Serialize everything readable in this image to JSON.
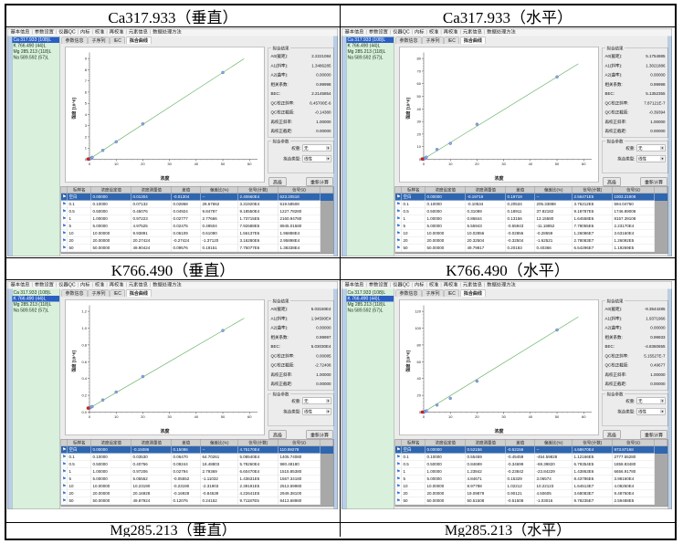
{
  "captions": {
    "r1c1": "Ca317.933（垂直）",
    "r1c2": "Ca317.933（水平）",
    "r2c1": "K766.490（垂直）",
    "r2c2": "K766.490（水平）",
    "r3c1": "Mg285.213（垂直）",
    "r3c2": "Mg285.213（水平）"
  },
  "app_common": {
    "menu": [
      "基本信息",
      "参数设置",
      "仪器QC",
      "内标",
      "校准",
      "再校准",
      "元素信息",
      "数据处理方法"
    ],
    "sidebar": [
      "Ca 317.933 (108)L",
      "K 766.490 (44)L",
      "Mg 285.213 (118)L",
      "Na 589.592 (57)L"
    ],
    "tabs": [
      "参数信息",
      "子序列",
      "IEC",
      "拟合曲线"
    ],
    "active_tab": "拟合曲线",
    "fit_group_title": "拟合结果",
    "fit_labels": [
      "A0(截距):",
      "A1(斜率):",
      "A2(曲率):",
      "相关系数:",
      "BEC:",
      "QC校正斜率:",
      "QC校正截距:",
      "再校正斜率:",
      "再校正截距:"
    ],
    "param_group_title": "拟合参数",
    "weight_label": "权重:",
    "weight_value": "无",
    "fit_type_label": "拟合类型:",
    "fit_type_value": "线性",
    "buttons": [
      "高级",
      "重新计算"
    ],
    "table_headers": [
      "",
      "标样名",
      "浓度设定值",
      "浓度测量值",
      "差值",
      "偏差比(%)",
      "信号(计数)",
      "信号SD"
    ],
    "x_axis_label": "浓度",
    "y_axis_label": "强度 [10^6]",
    "x_ticks": [
      0,
      10,
      20,
      30,
      40,
      50,
      60
    ],
    "flag_icon": "⚑",
    "colors": {
      "accent_blue": "#2b5fc4",
      "sidebar_green": "#d9f0dc",
      "fit_line_green": "#55aa55",
      "point_blue": "#8fa8dc",
      "point_red": "#e02020"
    }
  },
  "screens": [
    {
      "element": "Ca 317.933",
      "orientation": "垂直",
      "sidebar_selected": 0,
      "fit_values": [
        "2.2221084",
        "1.3486285",
        "0.00000",
        "0.99998",
        "2.2145854",
        "6.45700E-6",
        "-0.14380",
        "1.00000",
        "0.00000"
      ],
      "y_ticks": [
        "0",
        "1",
        "2",
        "3",
        "4",
        "5",
        "6",
        "7",
        "8",
        "9"
      ],
      "points": [
        [
          0,
          0.024
        ],
        [
          0.1,
          0.033
        ],
        [
          0.5,
          0.092
        ],
        [
          1,
          0.174
        ],
        [
          5,
          0.793
        ],
        [
          10,
          1.561
        ],
        [
          20,
          3.163
        ],
        [
          50,
          7.751
        ]
      ],
      "rows": [
        [
          "空白",
          "0.00000",
          "0.01304",
          "-0.01304",
          "--",
          "2.40660E4",
          "623.20518"
        ],
        [
          "0.1",
          "0.10000",
          "0.07132",
          "0.02868",
          "28.67662",
          "3.31920E4",
          "519.58508"
        ],
        [
          "0.5",
          "0.50000",
          "0.45076",
          "0.04924",
          "9.84787",
          "9.18550E4",
          "1227.78280"
        ],
        [
          "1",
          "1.00000",
          "0.97223",
          "0.02777",
          "2.77666",
          "1.73715E5",
          "2160.94780"
        ],
        [
          "5",
          "5.00000",
          "4.97525",
          "0.02475",
          "0.49504",
          "7.92688E5",
          "8945.01580"
        ],
        [
          "10",
          "10.00000",
          "9.93891",
          "0.06109",
          "0.61090",
          "1.56137E6",
          "1.96888E4"
        ],
        [
          "20",
          "20.00000",
          "20.27424",
          "-0.27424",
          "-1.37120",
          "3.16280E6",
          "2.95898E4"
        ],
        [
          "50",
          "50.00000",
          "49.90424",
          "0.09576",
          "0.19151",
          "7.75077E6",
          "1.38338E4"
        ]
      ]
    },
    {
      "element": "Ca 317.933",
      "orientation": "水平",
      "sidebar_selected": 0,
      "fit_values": [
        "5.1754885",
        "1.3021886",
        "0.00000",
        "0.99998",
        "5.1352355",
        "7.87121E-7",
        "-0.39394",
        "1.00000",
        "0.00000"
      ],
      "y_ticks": [
        "0",
        "10",
        "20",
        "30",
        "40",
        "50",
        "60",
        "70",
        "80"
      ],
      "points": [
        [
          0,
          0.256
        ],
        [
          0.1,
          0.376
        ],
        [
          0.5,
          0.919
        ],
        [
          1,
          1.646
        ],
        [
          5,
          7.781
        ],
        [
          10,
          12.609
        ],
        [
          20,
          27.808
        ],
        [
          50,
          65.43
        ]
      ],
      "rows": [
        [
          "空白",
          "0.00000",
          "-0.19719",
          "0.19719",
          "--",
          "2.56471E5",
          "1003.21908"
        ],
        [
          "0.1",
          "0.10000",
          "-0.10534",
          "0.20534",
          "205.33888",
          "3.76212E5",
          "594.04760"
        ],
        [
          "0.5",
          "0.50000",
          "0.31089",
          "0.18911",
          "37.82182",
          "9.18787E5",
          "1746.89008"
        ],
        [
          "1",
          "1.00000",
          "0.86844",
          "0.13156",
          "13.15580",
          "1.64558E6",
          "8157.39108"
        ],
        [
          "5",
          "5.00000",
          "5.55943",
          "-0.55943",
          "-11.18852",
          "7.78055E6",
          "2.23170E4"
        ],
        [
          "10",
          "10.00000",
          "10.02856",
          "-0.02856",
          "-0.28559",
          "1.26086E7",
          "3.63160E4"
        ],
        [
          "20",
          "20.00000",
          "20.32504",
          "-0.32504",
          "-1.62521",
          "2.78083E7",
          "1.26092E5"
        ],
        [
          "50",
          "50.00000",
          "49.79817",
          "0.20183",
          "0.40366",
          "6.54296E7",
          "1.19269E5"
        ]
      ]
    },
    {
      "element": "K 766.490",
      "orientation": "垂直",
      "sidebar_selected": 1,
      "fit_values": [
        "5.03150E4",
        "1.94590E4",
        "0.00000",
        "0.99997",
        "5.03030E4",
        "0.00085",
        "-2.72408",
        "1.00000",
        "0.00000"
      ],
      "y_ticks": [
        "0.0",
        "0.2",
        "0.4",
        "0.6",
        "0.8",
        "1.0",
        "1.2"
      ],
      "points": [
        [
          0,
          0.048
        ],
        [
          0.1,
          0.051
        ],
        [
          0.5,
          0.058
        ],
        [
          1,
          0.066
        ],
        [
          5,
          0.144
        ],
        [
          10,
          0.239
        ],
        [
          20,
          0.423
        ],
        [
          50,
          0.971
        ]
      ],
      "rows": [
        [
          "空白",
          "0.00000",
          "-0.15086",
          "0.15086",
          "--",
          "4.75170E4",
          "110.99278"
        ],
        [
          "0.1",
          "0.10000",
          "0.03530",
          "0.06470",
          "64.70261",
          "5.08540E4",
          "1405.74080"
        ],
        [
          "0.5",
          "0.50000",
          "0.40756",
          "0.09244",
          "18.48803",
          "5.78260E4",
          "980.48180"
        ],
        [
          "1",
          "1.00000",
          "0.97206",
          "0.02794",
          "2.79369",
          "6.60470E4",
          "1515.85380"
        ],
        [
          "5",
          "5.00000",
          "5.05552",
          "-0.05552",
          "-1.11032",
          "1.43631E5",
          "1567.34180"
        ],
        [
          "10",
          "10.00000",
          "10.23190",
          "-0.23190",
          "-2.31903",
          "2.39191E5",
          "2513.59980"
        ],
        [
          "20",
          "20.00000",
          "20.16928",
          "-0.16928",
          "-0.84639",
          "4.22641E5",
          "2949.38100"
        ],
        [
          "50",
          "50.00000",
          "49.87924",
          "0.12076",
          "0.24152",
          "9.71187E5",
          "8413.68980"
        ]
      ]
    },
    {
      "element": "K 766.490",
      "orientation": "水平",
      "sidebar_selected": 1,
      "fit_values": [
        "-9.3544285",
        "1.9371966",
        "0.00000",
        "0.99933",
        "-4.8360655",
        "5.15527E-7",
        "0.49677",
        "1.00000",
        "0.00000"
      ],
      "y_ticks": [
        "0",
        "20",
        "40",
        "60",
        "80",
        "100",
        "120"
      ],
      "points": [
        [
          0,
          0.047
        ],
        [
          0.1,
          0.112
        ],
        [
          0.5,
          0.679
        ],
        [
          1,
          1.439
        ],
        [
          5,
          8.438
        ],
        [
          10,
          16.451
        ],
        [
          20,
          36.808
        ],
        [
          50,
          97.824
        ]
      ],
      "rows": [
        [
          "空白",
          "0.00000",
          "0.52156",
          "-0.52156",
          "--",
          "4.68670E4",
          "973.87168"
        ],
        [
          "0.1",
          "0.10000",
          "0.55459",
          "-0.45459",
          "-454.59828",
          "1.12166E5",
          "2777.55280"
        ],
        [
          "0.5",
          "0.50000",
          "0.84699",
          "-0.34699",
          "-69.39820",
          "6.79354E5",
          "1858.83480"
        ],
        [
          "1",
          "1.00000",
          "1.23842",
          "-0.23842",
          "-23.84229",
          "1.43863E6",
          "6656.91780"
        ],
        [
          "5",
          "5.00000",
          "4.84671",
          "0.15329",
          "3.06574",
          "8.43786E6",
          "3.98160E4"
        ],
        [
          "10",
          "10.00000",
          "8.97788",
          "1.02212",
          "10.22123",
          "1.64513E7",
          "4.08250E4"
        ],
        [
          "20",
          "20.00000",
          "19.09879",
          "0.90121",
          "4.50605",
          "3.68083E7",
          "9.48750E4"
        ],
        [
          "50",
          "50.00000",
          "50.51508",
          "-0.51508",
          "-1.03016",
          "9.78235E7",
          "2.59488E5"
        ]
      ]
    }
  ]
}
